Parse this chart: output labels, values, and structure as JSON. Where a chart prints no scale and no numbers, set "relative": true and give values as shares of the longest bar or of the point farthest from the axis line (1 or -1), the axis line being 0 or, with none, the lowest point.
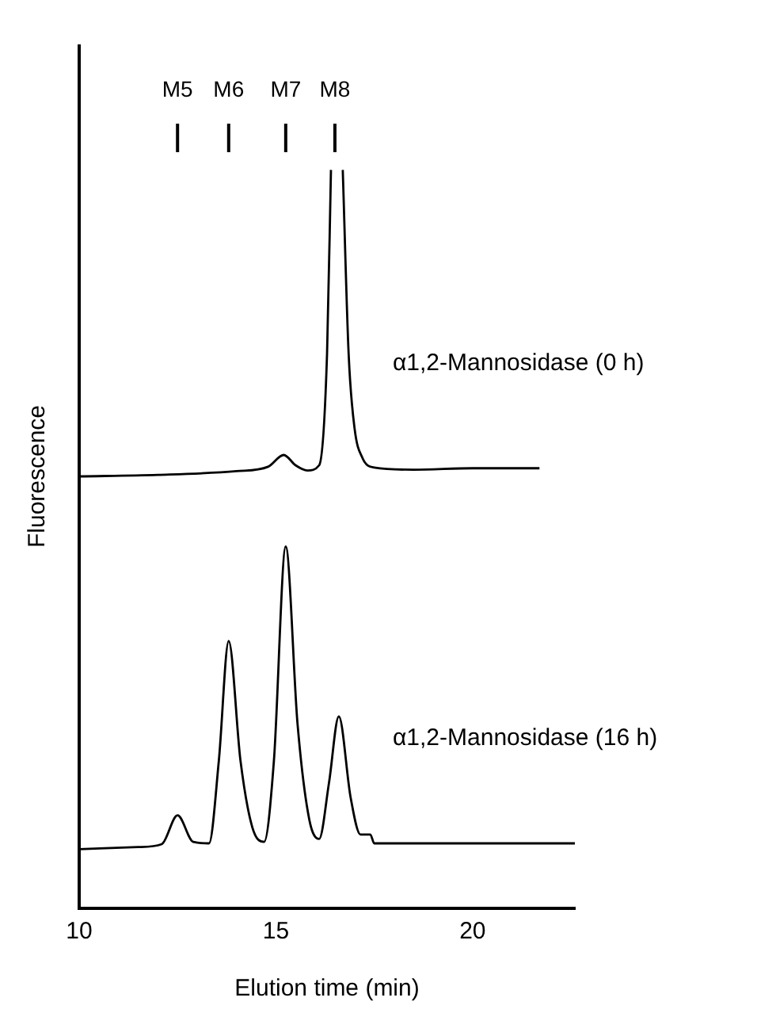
{
  "chart_data": {
    "type": "line",
    "relative": true,
    "xlabel": "Elution time (min)",
    "ylabel": "Fluorescence",
    "xlim": [
      10,
      22.6
    ],
    "xticks": [
      10,
      15,
      20
    ],
    "grid": false,
    "legend": false,
    "marker": "none",
    "line_style": "solid",
    "annotations": [
      {
        "text": "M5",
        "x": 12.5
      },
      {
        "text": "M6",
        "x": 13.8
      },
      {
        "text": "M7",
        "x": 15.25
      },
      {
        "text": "M8",
        "x": 16.5
      }
    ],
    "series": [
      {
        "name": "α1,2-Mannosidase (0 h)",
        "color": "#000000",
        "x": [
          10,
          12,
          14,
          14.8,
          15.2,
          15.5,
          15.8,
          16.1,
          16.3,
          16.4,
          16.55,
          16.7,
          16.85,
          17,
          17.2,
          17.5,
          18.5,
          20,
          21.7
        ],
        "values": [
          0.585,
          0.587,
          0.592,
          0.598,
          0.614,
          0.6,
          0.593,
          0.6,
          0.75,
          1,
          null,
          1,
          0.75,
          0.65,
          0.61,
          0.597,
          0.594,
          0.596,
          0.596
        ]
      },
      {
        "name": "α1,2-Mannosidase (16 h)",
        "color": "#000000",
        "x": [
          10,
          11.5,
          12.1,
          12.5,
          12.9,
          13.3,
          13.55,
          13.8,
          14.1,
          14.4,
          14.7,
          14.95,
          15.25,
          15.55,
          15.85,
          16.1,
          16.35,
          16.6,
          16.9,
          17.15,
          17.4,
          17.5,
          19,
          22.6
        ],
        "values": [
          0.08,
          0.083,
          0.087,
          0.126,
          0.09,
          0.088,
          0.2,
          0.362,
          0.2,
          0.11,
          0.09,
          0.2,
          0.49,
          0.25,
          0.12,
          0.094,
          0.17,
          0.26,
          0.15,
          0.1,
          0.1,
          0.088,
          0.088,
          0.088
        ]
      }
    ]
  }
}
